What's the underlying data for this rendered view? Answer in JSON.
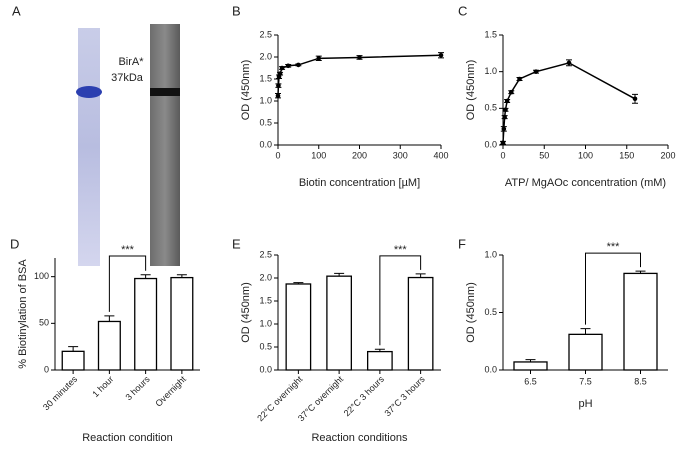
{
  "panel_a": {
    "label": "A",
    "annotation_lines": [
      "BirA*",
      "37kDa"
    ]
  },
  "chart_data": [
    {
      "type": "line",
      "label": "B",
      "xlabel": "Biotin concentration [µM]",
      "ylabel": "OD (450nm)",
      "x": [
        0,
        1,
        2.5,
        5,
        10,
        25,
        50,
        100,
        200,
        400
      ],
      "values": [
        1.12,
        1.35,
        1.55,
        1.62,
        1.75,
        1.8,
        1.82,
        1.97,
        1.99,
        2.04
      ],
      "errors": [
        0.05,
        0.04,
        0.04,
        0.03,
        0.03,
        0.03,
        0.02,
        0.05,
        0.04,
        0.06
      ],
      "xlim": [
        0,
        400
      ],
      "xticks": [
        0,
        100,
        200,
        300,
        400
      ],
      "ylim": [
        0,
        2.5
      ],
      "yticks": [
        {
          "value": 0,
          "label": "0.0"
        },
        0.5,
        {
          "value": 1,
          "label": "1.0"
        },
        1.5,
        {
          "value": 2,
          "label": "2.0"
        },
        2.5
      ],
      "color": "#000000"
    },
    {
      "type": "line",
      "label": "C",
      "xlabel": "ATP/ MgAOc concentration (mM)",
      "ylabel": "OD (450nm)",
      "x": [
        0,
        1,
        2,
        3,
        5,
        10,
        20,
        40,
        80,
        160
      ],
      "values": [
        0.03,
        0.22,
        0.38,
        0.48,
        0.6,
        0.72,
        0.9,
        1.0,
        1.12,
        0.63
      ],
      "errors": [
        0.02,
        0.03,
        0.02,
        0.02,
        0.02,
        0.02,
        0.02,
        0.02,
        0.04,
        0.06
      ],
      "xlim": [
        0,
        200
      ],
      "xticks": [
        0,
        50,
        100,
        150,
        200
      ],
      "ylim": [
        0,
        1.5
      ],
      "yticks": [
        {
          "value": 0,
          "label": "0.0"
        },
        0.5,
        {
          "value": 1,
          "label": "1.0"
        },
        1.5
      ],
      "color": "#000000"
    },
    {
      "type": "bar",
      "label": "D",
      "xlabel": "Reaction condition",
      "ylabel": "% Biotinylation of BSA",
      "categories": [
        "30 minutes",
        "1 hour",
        "3 hours",
        "Overnight"
      ],
      "values": [
        20,
        52,
        98,
        99
      ],
      "errors": [
        5,
        6,
        4,
        3
      ],
      "ylim": [
        0,
        120
      ],
      "yticks": [
        0,
        50,
        100
      ],
      "xtick_rotation": 45,
      "significance": {
        "label": "***",
        "between": [
          "1 hour",
          "3 hours"
        ]
      },
      "color": "#ffffff"
    },
    {
      "type": "bar",
      "label": "E",
      "xlabel": "Reaction conditions",
      "ylabel": "OD (450nm)",
      "categories": [
        "22°C overnight",
        "37°C overnight",
        "22°C 3 hours",
        "37°C 3 hours"
      ],
      "values": [
        1.87,
        2.04,
        0.4,
        2.01
      ],
      "errors": [
        0.03,
        0.06,
        0.05,
        0.08
      ],
      "ylim": [
        0,
        2.5
      ],
      "yticks": [
        {
          "value": 0,
          "label": "0.0"
        },
        0.5,
        {
          "value": 1,
          "label": "1.0"
        },
        1.5,
        {
          "value": 2,
          "label": "2.0"
        },
        2.5
      ],
      "xtick_rotation": 45,
      "significance": {
        "label": "***",
        "between": [
          "22°C 3 hours",
          "37°C 3 hours"
        ]
      },
      "color": "#ffffff"
    },
    {
      "type": "bar",
      "label": "F",
      "xlabel": "pH",
      "ylabel": "OD (450nm)",
      "categories": [
        "6.5",
        "7.5",
        "8.5"
      ],
      "values": [
        0.07,
        0.31,
        0.84
      ],
      "errors": [
        0.02,
        0.05,
        0.02
      ],
      "ylim": [
        0,
        1
      ],
      "yticks": [
        {
          "value": 0,
          "label": "0.0"
        },
        0.5,
        {
          "value": 1,
          "label": "1.0"
        }
      ],
      "xtick_rotation": 0,
      "significance": {
        "label": "***",
        "between": [
          "7.5",
          "8.5"
        ]
      },
      "color": "#ffffff"
    }
  ]
}
